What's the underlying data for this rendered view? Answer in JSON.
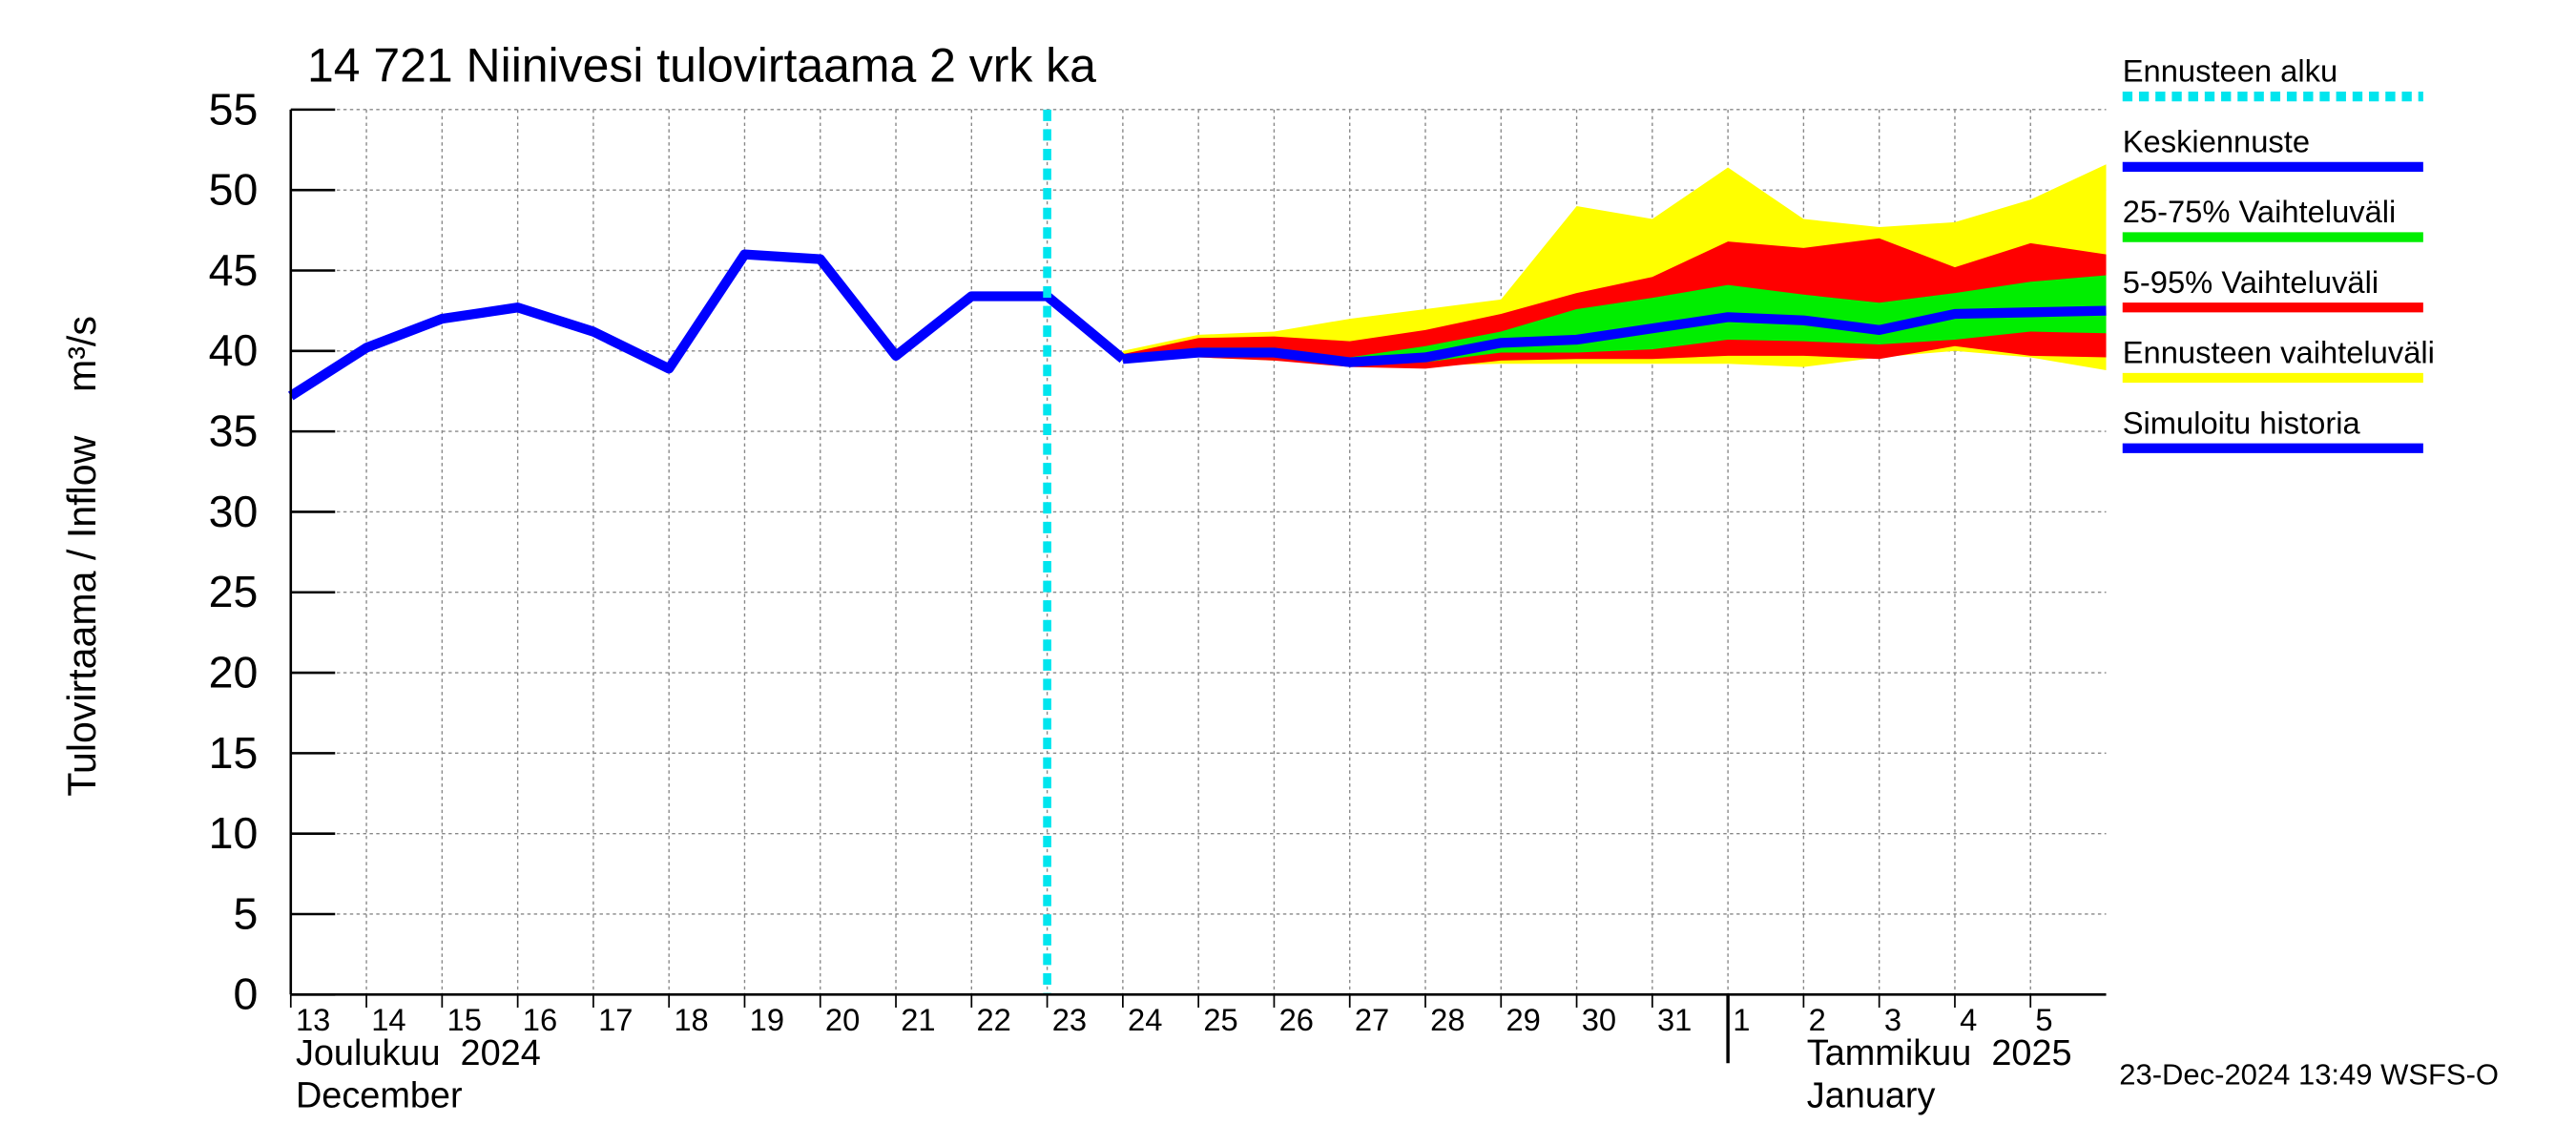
{
  "chart_data": {
    "type": "forecast-band",
    "title": "14 721 Niinivesi tulovirtaama 2 vrk ka",
    "y_label": "Tulovirtaama / Inflow    m³/s",
    "x": [
      "2024-12-13",
      "2024-12-14",
      "2024-12-15",
      "2024-12-16",
      "2024-12-17",
      "2024-12-18",
      "2024-12-19",
      "2024-12-20",
      "2024-12-21",
      "2024-12-22",
      "2024-12-23",
      "2024-12-24",
      "2024-12-25",
      "2024-12-26",
      "2024-12-27",
      "2024-12-28",
      "2024-12-29",
      "2024-12-30",
      "2024-12-31",
      "2025-01-01",
      "2025-01-02",
      "2025-01-03",
      "2025-01-04",
      "2025-01-05",
      "2025-01-06"
    ],
    "xticks": [
      {
        "value": "2024-12-13",
        "label": "13"
      },
      {
        "value": "2024-12-14",
        "label": "14"
      },
      {
        "value": "2024-12-15",
        "label": "15"
      },
      {
        "value": "2024-12-16",
        "label": "16"
      },
      {
        "value": "2024-12-17",
        "label": "17"
      },
      {
        "value": "2024-12-18",
        "label": "18"
      },
      {
        "value": "2024-12-19",
        "label": "19"
      },
      {
        "value": "2024-12-20",
        "label": "20"
      },
      {
        "value": "2024-12-21",
        "label": "21"
      },
      {
        "value": "2024-12-22",
        "label": "22"
      },
      {
        "value": "2024-12-23",
        "label": "23"
      },
      {
        "value": "2024-12-24",
        "label": "24"
      },
      {
        "value": "2024-12-25",
        "label": "25"
      },
      {
        "value": "2024-12-26",
        "label": "26"
      },
      {
        "value": "2024-12-27",
        "label": "27"
      },
      {
        "value": "2024-12-28",
        "label": "28"
      },
      {
        "value": "2024-12-29",
        "label": "29"
      },
      {
        "value": "2024-12-30",
        "label": "30"
      },
      {
        "value": "2024-12-31",
        "label": "31"
      },
      {
        "value": "2025-01-01",
        "label": "1"
      },
      {
        "value": "2025-01-02",
        "label": "2"
      },
      {
        "value": "2025-01-03",
        "label": "3"
      },
      {
        "value": "2025-01-04",
        "label": "4"
      },
      {
        "value": "2025-01-05",
        "label": "5"
      }
    ],
    "month_labels": [
      {
        "x": "2024-12-13",
        "lines": [
          "Joulukuu  2024",
          "December"
        ]
      },
      {
        "x": "2025-01-01",
        "lines": [
          "Tammikuu  2025",
          "January"
        ]
      }
    ],
    "ylim": [
      0,
      55
    ],
    "yticks": [
      0,
      5,
      10,
      15,
      20,
      25,
      30,
      35,
      40,
      45,
      50,
      55
    ],
    "grid": true,
    "forecast_start": {
      "name": "Ennusteen alku",
      "color": "#00e5ee",
      "x": "2024-12-23"
    },
    "series": [
      {
        "name": "Keskiennuste",
        "kind": "line",
        "color": "#0000ff",
        "values": [
          null,
          null,
          null,
          null,
          null,
          null,
          null,
          null,
          null,
          null,
          null,
          39.5,
          39.9,
          39.9,
          39.3,
          39.6,
          40.5,
          40.7,
          41.4,
          42.1,
          41.9,
          41.3,
          42.3,
          42.4,
          42.5
        ]
      },
      {
        "name": "25-75% Vaihteluväli",
        "kind": "band",
        "color": "#00ee00",
        "low": [
          null,
          null,
          null,
          null,
          null,
          null,
          null,
          null,
          null,
          null,
          null,
          39.5,
          39.7,
          39.6,
          39.2,
          39.3,
          39.9,
          39.9,
          40.1,
          40.7,
          40.6,
          40.4,
          40.7,
          41.2,
          41.1
        ],
        "high": [
          null,
          null,
          null,
          null,
          null,
          null,
          null,
          null,
          null,
          null,
          null,
          39.7,
          40.2,
          40.2,
          39.6,
          40.3,
          41.2,
          42.6,
          43.3,
          44.1,
          43.5,
          43.0,
          43.6,
          44.3,
          44.7
        ]
      },
      {
        "name": "5-95% Vaihteluväli",
        "kind": "band",
        "color": "#ff0000",
        "low": [
          null,
          null,
          null,
          null,
          null,
          null,
          null,
          null,
          null,
          null,
          null,
          39.5,
          39.6,
          39.4,
          39.0,
          38.9,
          39.4,
          39.5,
          39.5,
          39.7,
          39.7,
          39.5,
          40.3,
          39.7,
          39.6
        ],
        "high": [
          null,
          null,
          null,
          null,
          null,
          null,
          null,
          null,
          null,
          null,
          null,
          39.8,
          40.8,
          40.9,
          40.6,
          41.3,
          42.3,
          43.6,
          44.6,
          46.8,
          46.4,
          47.0,
          45.2,
          46.7,
          46.0
        ]
      },
      {
        "name": "Ennusteen vaihteluväli",
        "kind": "band",
        "color": "#ffff00",
        "low": [
          null,
          null,
          null,
          null,
          null,
          null,
          null,
          null,
          null,
          null,
          null,
          39.5,
          39.6,
          39.4,
          39.2,
          39.1,
          39.2,
          39.2,
          39.2,
          39.2,
          39.0,
          39.6,
          40.0,
          39.6,
          38.8
        ],
        "high": [
          null,
          null,
          null,
          null,
          null,
          null,
          null,
          null,
          null,
          null,
          null,
          40.0,
          41.0,
          41.2,
          42.0,
          42.6,
          43.2,
          49.0,
          48.2,
          51.4,
          48.2,
          47.7,
          48.0,
          49.4,
          51.6
        ]
      },
      {
        "name": "Simuloitu historia",
        "kind": "line",
        "color": "#0000ff",
        "values": [
          37.2,
          40.2,
          42.0,
          42.7,
          41.2,
          38.9,
          46.0,
          45.7,
          39.7,
          43.4,
          43.4,
          39.5,
          null,
          null,
          null,
          null,
          null,
          null,
          null,
          null,
          null,
          null,
          null,
          null,
          null
        ]
      }
    ],
    "timestamp": "23-Dec-2024 13:49 WSFS-O"
  }
}
